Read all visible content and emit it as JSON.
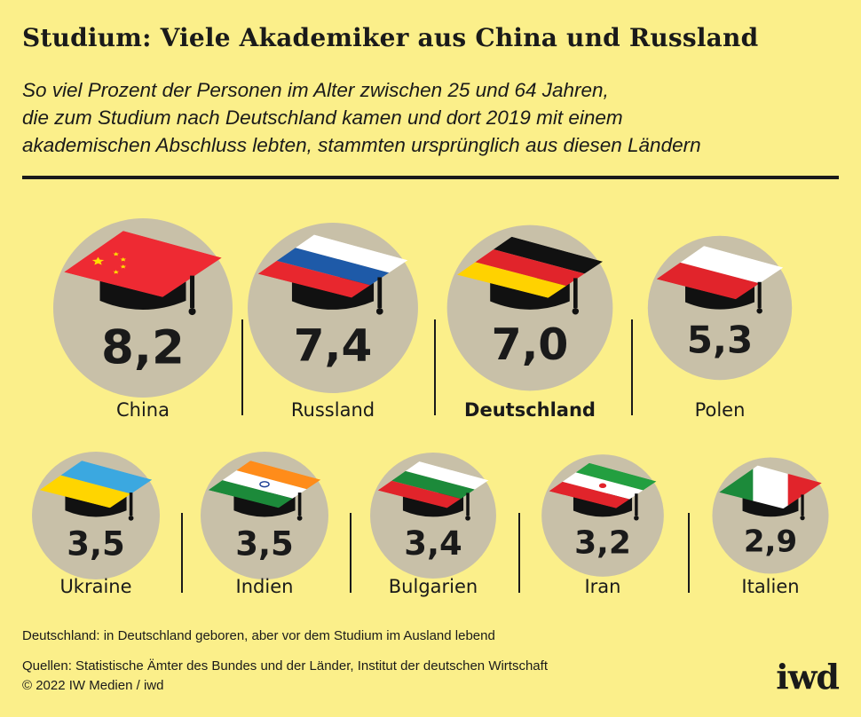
{
  "header": {
    "title": "Studium: Viele Akademiker aus China und Russland",
    "subtitle_lines": [
      "So viel Prozent der Personen im Alter zwischen 25 und 64 Jahren,",
      "die zum Studium nach Deutschland kamen und dort 2019 mit einem",
      "akademischen Abschluss lebten, stammten ursprünglich aus diesen Ländern"
    ]
  },
  "chart_data": {
    "type": "bar",
    "title": "Studium: Viele Akademiker aus China und Russland",
    "unit": "Prozent",
    "categories": [
      "China",
      "Russland",
      "Deutschland",
      "Polen",
      "Ukraine",
      "Indien",
      "Bulgarien",
      "Iran",
      "Italien"
    ],
    "values": [
      8.2,
      7.4,
      7.0,
      5.3,
      3.5,
      3.5,
      3.4,
      3.2,
      2.9
    ],
    "value_labels": [
      "8,2",
      "7,4",
      "7,0",
      "5,3",
      "3,5",
      "3,5",
      "3,4",
      "3,2",
      "2,9"
    ],
    "highlighted": "Deutschland"
  },
  "colors": {
    "background": "#fbef8a",
    "circle": "#c8c0a8",
    "text": "#1a1a1a",
    "cap": "#111111"
  },
  "flag_icons": [
    "flag-china-icon",
    "flag-russia-icon",
    "flag-germany-icon",
    "flag-poland-icon",
    "flag-ukraine-icon",
    "flag-india-icon",
    "flag-bulgaria-icon",
    "flag-iran-icon",
    "flag-italy-icon"
  ],
  "footer": {
    "note": "Deutschland: in Deutschland geboren, aber vor dem Studium im Ausland lebend",
    "source_lines": [
      "Quellen: Statistische Ämter des Bundes und der Länder, Institut der deutschen Wirtschaft",
      "© 2022 IW Medien / iwd"
    ],
    "logo": "iwd"
  }
}
